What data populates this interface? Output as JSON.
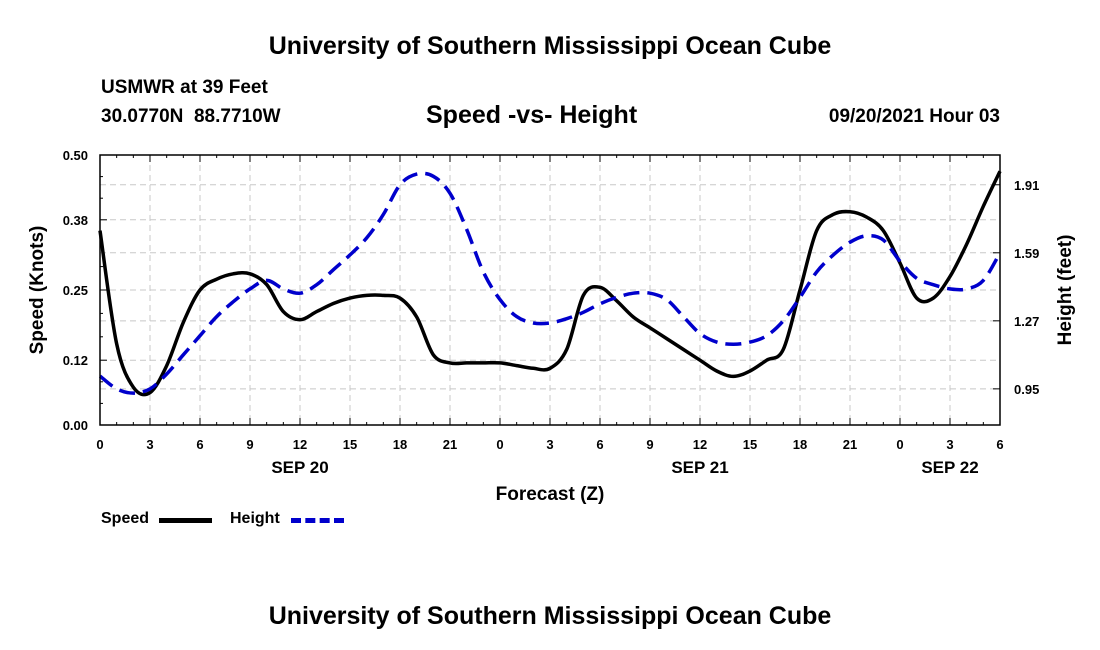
{
  "header": {
    "title": "University of Southern Mississippi Ocean Cube",
    "station": "USMWR at 39 Feet",
    "coords": "30.0770N  88.7710W",
    "subtitle": "Speed -vs- Height",
    "datetime": "09/20/2021 Hour 03"
  },
  "footer": {
    "title": "University of Southern Mississippi Ocean Cube"
  },
  "legend": {
    "speed_label": "Speed",
    "height_label": "Height"
  },
  "chart_data": {
    "type": "line",
    "title": "Speed -vs- Height",
    "xlabel": "Forecast (Z)",
    "ylabel": "Speed (Knots)",
    "y2label": "Height (feet)",
    "x_range": [
      0,
      54
    ],
    "x_tick_positions": [
      0,
      3,
      6,
      9,
      12,
      15,
      18,
      21,
      24,
      27,
      30,
      33,
      36,
      39,
      42,
      45,
      48,
      51,
      54
    ],
    "x_tick_labels": [
      "0",
      "3",
      "6",
      "9",
      "12",
      "15",
      "18",
      "21",
      "0",
      "3",
      "6",
      "9",
      "12",
      "15",
      "18",
      "21",
      "0",
      "3",
      "6"
    ],
    "date_labels": [
      {
        "x": 12,
        "label": "SEP 20"
      },
      {
        "x": 36,
        "label": "SEP 21"
      },
      {
        "x": 51,
        "label": "SEP 22"
      }
    ],
    "ylim": [
      0,
      0.5
    ],
    "y_ticks": [
      0.0,
      0.12,
      0.25,
      0.38,
      0.5
    ],
    "y_tick_labels": [
      "0.00",
      "0.12",
      "0.25",
      "0.38",
      "0.50"
    ],
    "y2lim": [
      0.78,
      2.05
    ],
    "y2_ticks": [
      0.95,
      1.27,
      1.59,
      1.91
    ],
    "y2_tick_labels": [
      "0.95",
      "1.27",
      "1.59",
      "1.91"
    ],
    "grid": true,
    "legend_position": "bottom-left",
    "series": [
      {
        "name": "Speed",
        "axis": "left",
        "color": "#000000",
        "style": "solid",
        "x": [
          0,
          1,
          2,
          3,
          4,
          5,
          6,
          7,
          8,
          9,
          10,
          11,
          12,
          13,
          14,
          15,
          16,
          17,
          18,
          19,
          20,
          21,
          22,
          23,
          24,
          25,
          26,
          27,
          28,
          29,
          30,
          31,
          32,
          33,
          34,
          35,
          36,
          37,
          38,
          39,
          40,
          41,
          42,
          43,
          44,
          45,
          46,
          47,
          48,
          49,
          50,
          51,
          52,
          53,
          54
        ],
        "values": [
          0.36,
          0.15,
          0.07,
          0.06,
          0.11,
          0.19,
          0.25,
          0.27,
          0.28,
          0.28,
          0.26,
          0.21,
          0.195,
          0.21,
          0.225,
          0.235,
          0.24,
          0.24,
          0.235,
          0.2,
          0.13,
          0.115,
          0.115,
          0.115,
          0.115,
          0.11,
          0.105,
          0.105,
          0.14,
          0.24,
          0.255,
          0.23,
          0.2,
          0.18,
          0.16,
          0.14,
          0.12,
          0.1,
          0.09,
          0.1,
          0.12,
          0.14,
          0.25,
          0.36,
          0.39,
          0.395,
          0.385,
          0.36,
          0.3,
          0.235,
          0.235,
          0.275,
          0.335,
          0.405,
          0.47
        ]
      },
      {
        "name": "Height",
        "axis": "right",
        "color": "#0000cc",
        "style": "dashed",
        "x": [
          0,
          1,
          2,
          3,
          4,
          5,
          6,
          7,
          8,
          9,
          10,
          11,
          12,
          13,
          14,
          15,
          16,
          17,
          18,
          19,
          20,
          21,
          22,
          23,
          24,
          25,
          26,
          27,
          28,
          29,
          30,
          31,
          32,
          33,
          34,
          35,
          36,
          37,
          38,
          39,
          40,
          41,
          42,
          43,
          44,
          45,
          46,
          47,
          48,
          49,
          50,
          51,
          52,
          53,
          54
        ],
        "values": [
          1.01,
          0.95,
          0.93,
          0.95,
          1.02,
          1.11,
          1.2,
          1.29,
          1.36,
          1.42,
          1.46,
          1.42,
          1.4,
          1.44,
          1.51,
          1.58,
          1.66,
          1.77,
          1.91,
          1.96,
          1.95,
          1.87,
          1.7,
          1.5,
          1.37,
          1.29,
          1.26,
          1.26,
          1.28,
          1.31,
          1.35,
          1.38,
          1.4,
          1.4,
          1.37,
          1.29,
          1.21,
          1.17,
          1.16,
          1.17,
          1.2,
          1.27,
          1.38,
          1.5,
          1.58,
          1.64,
          1.67,
          1.65,
          1.55,
          1.47,
          1.44,
          1.42,
          1.42,
          1.46,
          1.59
        ]
      }
    ]
  }
}
